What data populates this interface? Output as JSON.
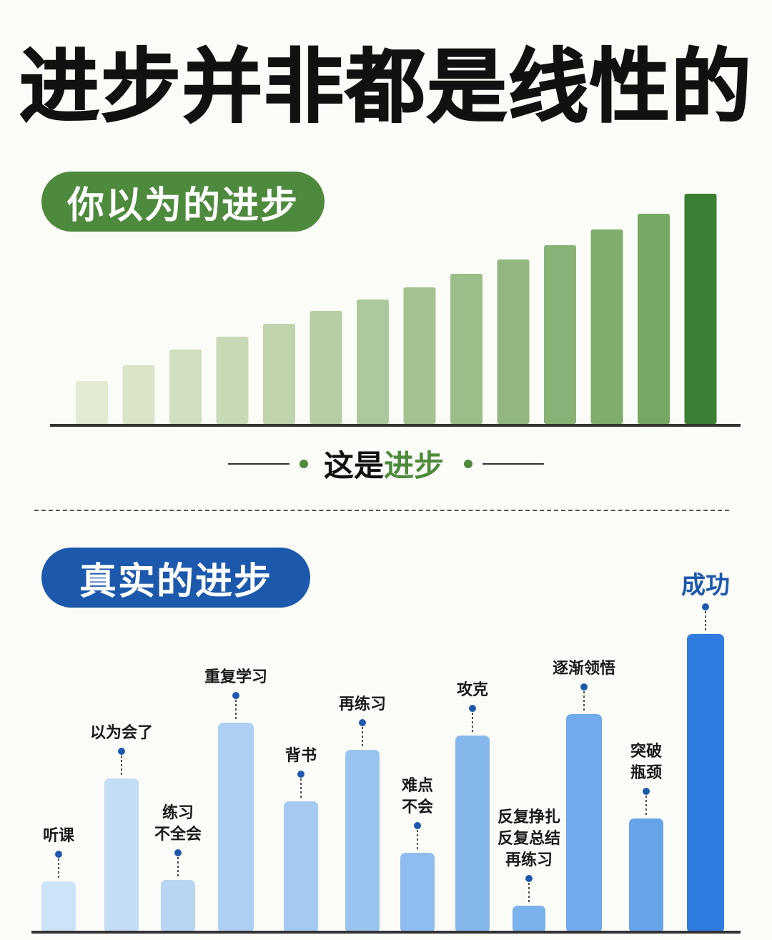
{
  "title": "进步并非都是线性的",
  "top_section": {
    "pill": "你以为的进步"
  },
  "caption": {
    "part1": "这是",
    "part2": "进步"
  },
  "bottom_section": {
    "pill": "真实的进步"
  },
  "colors": {
    "green": "#4e8a3d",
    "blue": "#1c59ad"
  },
  "chart_data": [
    {
      "type": "bar",
      "values": [
        60,
        82,
        104,
        122,
        140,
        158,
        174,
        191,
        210,
        230,
        250,
        272,
        294,
        322
      ],
      "ylim": [
        0,
        330
      ]
    },
    {
      "type": "bar",
      "categories": [
        "听课",
        "以为会了",
        "练习\n不全会",
        "重复学习",
        "背书",
        "再练习",
        "难点\n不会",
        "攻克",
        "反复挣扎\n反复总结\n再练习",
        "逐渐领悟",
        "突破\n瓶颈",
        "成功"
      ],
      "values": [
        68,
        212,
        70,
        290,
        180,
        252,
        108,
        272,
        34,
        302,
        156,
        414
      ],
      "ylim": [
        0,
        420
      ]
    }
  ]
}
